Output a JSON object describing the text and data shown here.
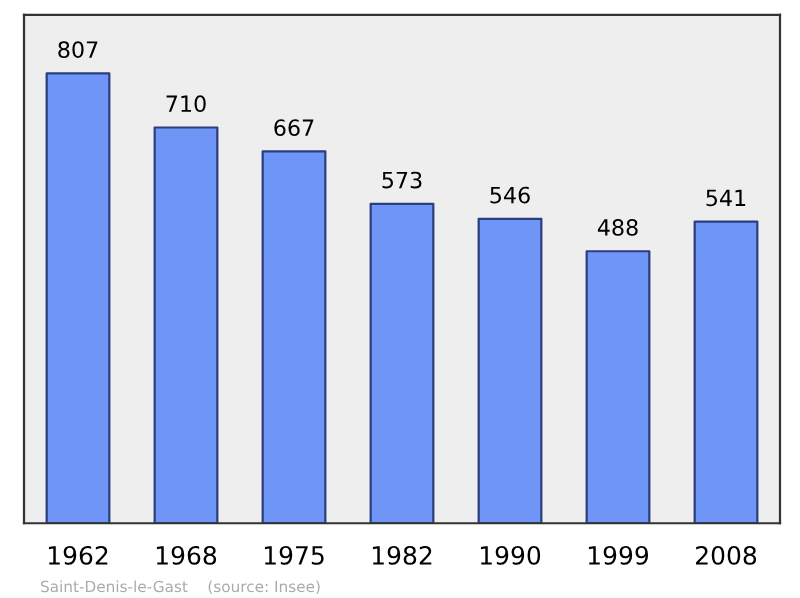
{
  "chart_data": {
    "type": "bar",
    "categories": [
      "1962",
      "1968",
      "1975",
      "1982",
      "1990",
      "1999",
      "2008"
    ],
    "values": [
      807,
      710,
      667,
      573,
      546,
      488,
      541
    ],
    "color": "#6f95f7",
    "data_labels": true,
    "grid": false,
    "tick_labels": "x",
    "annotations": [
      "Saint-Denis-le-Gast    (source: Insee)"
    ]
  }
}
